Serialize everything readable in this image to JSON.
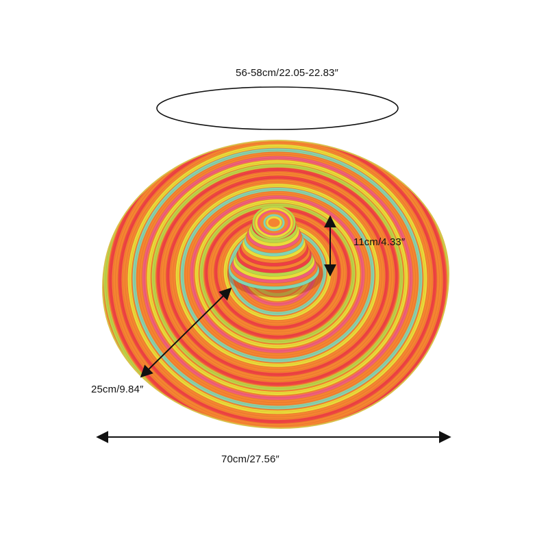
{
  "dimensions": {
    "head_circumference": "56-58cm/22.05-22.83″",
    "crown_height": "11cm/4.33″",
    "brim_width": "25cm/9.84″",
    "total_diameter": "70cm/27.56″"
  },
  "product_image": {
    "colors": {
      "red": "#ee3f45",
      "orange": "#f58431",
      "yellow": "#e9de3a",
      "mint": "#7fd6b4",
      "pink": "#ef5d7d",
      "lime": "#b9d64a"
    }
  }
}
